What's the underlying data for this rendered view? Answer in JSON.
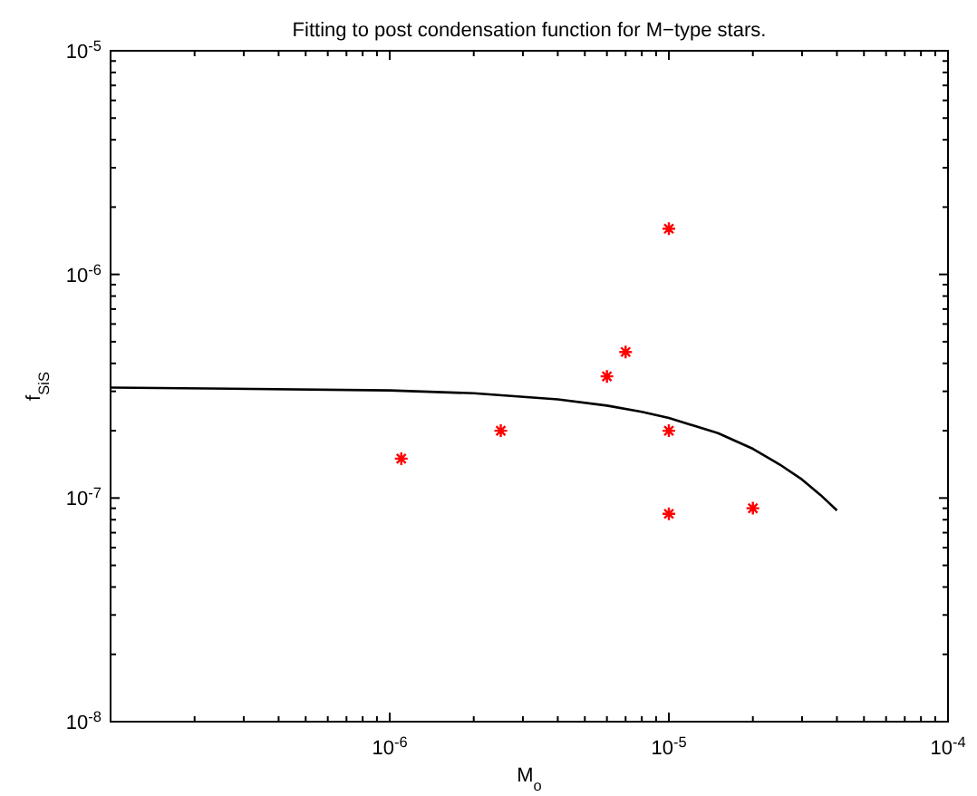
{
  "chart_data": {
    "type": "scatter",
    "title": "Fitting to post condensation function for M−type stars.",
    "xlabel": "M$_{o}$",
    "ylabel": "f$_{SiS}$",
    "log": "xy",
    "grid": false,
    "xlim": [
      1e-07,
      0.0001
    ],
    "ylim": [
      1e-08,
      1e-05
    ],
    "xticks": [
      {
        "value": 2e-07,
        "label": null
      },
      {
        "value": 3e-07,
        "label": null
      },
      {
        "value": 4e-07,
        "label": null
      },
      {
        "value": 5e-07,
        "label": null
      },
      {
        "value": 6e-07,
        "label": null
      },
      {
        "value": 7e-07,
        "label": null
      },
      {
        "value": 8e-07,
        "label": null
      },
      {
        "value": 9e-07,
        "label": null
      },
      {
        "value": 1e-06,
        "label": "10$^{-6}$"
      },
      {
        "value": 2e-06,
        "label": null
      },
      {
        "value": 3e-06,
        "label": null
      },
      {
        "value": 4e-06,
        "label": null
      },
      {
        "value": 5e-06,
        "label": null
      },
      {
        "value": 6e-06,
        "label": null
      },
      {
        "value": 7e-06,
        "label": null
      },
      {
        "value": 8e-06,
        "label": null
      },
      {
        "value": 9e-06,
        "label": null
      },
      {
        "value": 1e-05,
        "label": "10$^{-5}$"
      },
      {
        "value": 2e-05,
        "label": null
      },
      {
        "value": 3e-05,
        "label": null
      },
      {
        "value": 4e-05,
        "label": null
      },
      {
        "value": 5e-05,
        "label": null
      },
      {
        "value": 6e-05,
        "label": null
      },
      {
        "value": 7e-05,
        "label": null
      },
      {
        "value": 8e-05,
        "label": null
      },
      {
        "value": 9e-05,
        "label": null
      },
      {
        "value": 0.0001,
        "label": "10$^{-4}$"
      }
    ],
    "yticks": [
      {
        "value": 1e-08,
        "label": "10$^{-8}$"
      },
      {
        "value": 2e-08,
        "label": null
      },
      {
        "value": 3e-08,
        "label": null
      },
      {
        "value": 4e-08,
        "label": null
      },
      {
        "value": 5e-08,
        "label": null
      },
      {
        "value": 6e-08,
        "label": null
      },
      {
        "value": 7e-08,
        "label": null
      },
      {
        "value": 8e-08,
        "label": null
      },
      {
        "value": 9e-08,
        "label": null
      },
      {
        "value": 1e-07,
        "label": "10$^{-7}$"
      },
      {
        "value": 2e-07,
        "label": null
      },
      {
        "value": 3e-07,
        "label": null
      },
      {
        "value": 4e-07,
        "label": null
      },
      {
        "value": 5e-07,
        "label": null
      },
      {
        "value": 6e-07,
        "label": null
      },
      {
        "value": 7e-07,
        "label": null
      },
      {
        "value": 8e-07,
        "label": null
      },
      {
        "value": 9e-07,
        "label": null
      },
      {
        "value": 1e-06,
        "label": "10$^{-6}$"
      },
      {
        "value": 2e-06,
        "label": null
      },
      {
        "value": 3e-06,
        "label": null
      },
      {
        "value": 4e-06,
        "label": null
      },
      {
        "value": 5e-06,
        "label": null
      },
      {
        "value": 6e-06,
        "label": null
      },
      {
        "value": 7e-06,
        "label": null
      },
      {
        "value": 8e-06,
        "label": null
      },
      {
        "value": 9e-06,
        "label": null
      },
      {
        "value": 1e-05,
        "label": "10$^{-5}$"
      }
    ],
    "series": [
      {
        "color": "#ff0000",
        "marker": "cross",
        "x": [
          1.1e-06,
          2.5e-06,
          6e-06,
          7e-06,
          1e-05,
          1e-05,
          1e-05,
          2e-05
        ],
        "values": [
          1.5e-07,
          2e-07,
          3.5e-07,
          4.5e-07,
          1.6e-06,
          2e-07,
          8.5e-08,
          9e-08
        ]
      },
      {
        "type": "line",
        "color": "#000000",
        "marker": "none",
        "line_style": "solid",
        "x": [
          1e-07,
          1e-06,
          2e-06,
          4e-06,
          6e-06,
          8e-06,
          1e-05,
          1.5e-05,
          2e-05,
          2.5e-05,
          3e-05,
          3.5e-05,
          4e-05
        ],
        "values": [
          3.12e-07,
          3.03e-07,
          2.94e-07,
          2.76e-07,
          2.59e-07,
          2.43e-07,
          2.28e-07,
          1.95e-07,
          1.66e-07,
          1.41e-07,
          1.21e-07,
          1.03e-07,
          8.8e-08
        ]
      }
    ]
  }
}
